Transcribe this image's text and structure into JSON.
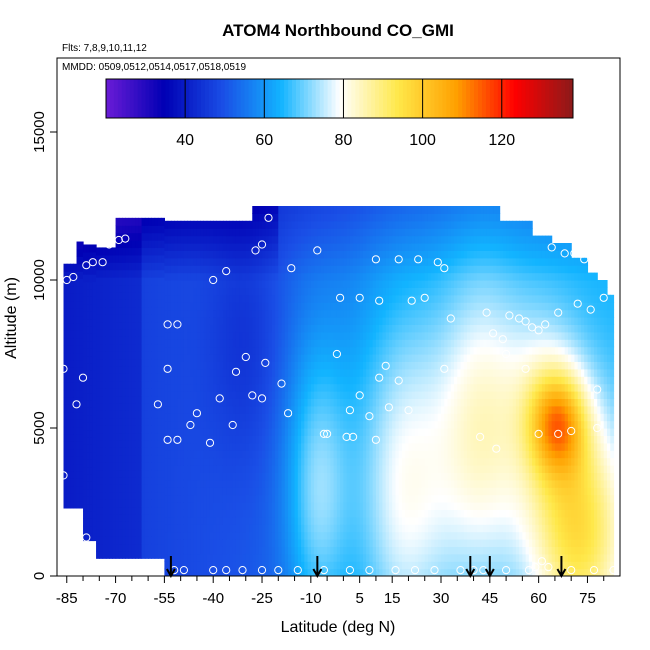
{
  "chart_data": {
    "type": "heatmap",
    "title": "ATOM4 Northbound CO_GMI",
    "notes": [
      "Flts: 7,8,9,10,11,12",
      "MMDD: 0509,0512,0514,0517,0518,0519"
    ],
    "xlabel": "Latitude (deg N)",
    "ylabel": "Altitude (m)",
    "xlim": [
      -88,
      85
    ],
    "ylim": [
      0,
      17500
    ],
    "x_ticks": [
      -85,
      -70,
      -55,
      -40,
      -25,
      -10,
      5,
      15,
      30,
      45,
      60,
      75
    ],
    "x_minor_ticks": [
      -80,
      -75,
      -65,
      -60,
      -50,
      -45,
      -35,
      -30,
      -20,
      -15,
      -5,
      0,
      10,
      20,
      25,
      35,
      40,
      50,
      55,
      65,
      70,
      80
    ],
    "y_ticks": [
      0,
      5000,
      10000,
      15000
    ],
    "colorbar": {
      "range": [
        20,
        138
      ],
      "ticks": [
        40,
        60,
        80,
        100,
        120
      ],
      "colors": [
        "#6b1cd6",
        "#0000b4",
        "#1a4ee6",
        "#12b4ff",
        "#ffffff",
        "#ffe84a",
        "#ffa000",
        "#ff0000",
        "#8b1a1a"
      ]
    },
    "field": {
      "lat_range": [
        -86,
        83
      ],
      "alt_range": [
        0,
        12500
      ],
      "value_range": [
        20,
        138
      ]
    },
    "descent_markers_lat": [
      -53,
      -8,
      39,
      45,
      67
    ],
    "observations": [
      {
        "lat": -85,
        "alt": 10000
      },
      {
        "lat": -83,
        "alt": 10100
      },
      {
        "lat": -79,
        "alt": 10500
      },
      {
        "lat": -77,
        "alt": 10600
      },
      {
        "lat": -74,
        "alt": 10600
      },
      {
        "lat": -72,
        "alt": 11200
      },
      {
        "lat": -69,
        "alt": 11350
      },
      {
        "lat": -67,
        "alt": 11400
      },
      {
        "lat": -40,
        "alt": 10000
      },
      {
        "lat": -36,
        "alt": 10300
      },
      {
        "lat": -27,
        "alt": 11000
      },
      {
        "lat": -25,
        "alt": 11200
      },
      {
        "lat": -23,
        "alt": 12100
      },
      {
        "lat": -8,
        "alt": 11000
      },
      {
        "lat": 10,
        "alt": 10700
      },
      {
        "lat": 17,
        "alt": 10700
      },
      {
        "lat": 23,
        "alt": 10700
      },
      {
        "lat": 29,
        "alt": 10600
      },
      {
        "lat": 31,
        "alt": 10400
      },
      {
        "lat": 64,
        "alt": 11100
      },
      {
        "lat": 68,
        "alt": 10900
      },
      {
        "lat": 71,
        "alt": 10900
      },
      {
        "lat": 73,
        "alt": 11100
      },
      {
        "lat": 74,
        "alt": 10700
      },
      {
        "lat": -16,
        "alt": 10400
      },
      {
        "lat": -1,
        "alt": 9400
      },
      {
        "lat": 5,
        "alt": 9400
      },
      {
        "lat": 11,
        "alt": 9300
      },
      {
        "lat": 21,
        "alt": 9300
      },
      {
        "lat": 25,
        "alt": 9400
      },
      {
        "lat": 33,
        "alt": 8700
      },
      {
        "lat": 44,
        "alt": 8900
      },
      {
        "lat": 51,
        "alt": 8800
      },
      {
        "lat": 54,
        "alt": 8700
      },
      {
        "lat": 56,
        "alt": 8600
      },
      {
        "lat": 58,
        "alt": 8400
      },
      {
        "lat": 60,
        "alt": 8300
      },
      {
        "lat": 62,
        "alt": 8500
      },
      {
        "lat": 66,
        "alt": 8900
      },
      {
        "lat": 72,
        "alt": 9200
      },
      {
        "lat": 76,
        "alt": 9000
      },
      {
        "lat": 80,
        "alt": 9400
      },
      {
        "lat": 46,
        "alt": 8200
      },
      {
        "lat": 49,
        "alt": 8000
      },
      {
        "lat": -54,
        "alt": 8500
      },
      {
        "lat": -51,
        "alt": 8500
      },
      {
        "lat": -86,
        "alt": 7000
      },
      {
        "lat": -80,
        "alt": 6700
      },
      {
        "lat": -54,
        "alt": 7000
      },
      {
        "lat": -30,
        "alt": 7400
      },
      {
        "lat": -24,
        "alt": 7200
      },
      {
        "lat": -19,
        "alt": 6500
      },
      {
        "lat": -33,
        "alt": 6900
      },
      {
        "lat": -2,
        "alt": 7500
      },
      {
        "lat": 13,
        "alt": 7100
      },
      {
        "lat": 11,
        "alt": 6700
      },
      {
        "lat": 17,
        "alt": 6600
      },
      {
        "lat": 31,
        "alt": 7000
      },
      {
        "lat": 50,
        "alt": 7500
      },
      {
        "lat": 56,
        "alt": 7000
      },
      {
        "lat": 78,
        "alt": 6300
      },
      {
        "lat": -82,
        "alt": 5800
      },
      {
        "lat": -57,
        "alt": 5800
      },
      {
        "lat": -45,
        "alt": 5500
      },
      {
        "lat": -38,
        "alt": 6000
      },
      {
        "lat": -28,
        "alt": 6100
      },
      {
        "lat": -25,
        "alt": 6000
      },
      {
        "lat": -17,
        "alt": 5500
      },
      {
        "lat": 2,
        "alt": 5600
      },
      {
        "lat": 5,
        "alt": 6100
      },
      {
        "lat": 8,
        "alt": 5400
      },
      {
        "lat": 14,
        "alt": 5700
      },
      {
        "lat": 20,
        "alt": 5600
      },
      {
        "lat": -34,
        "alt": 5100
      },
      {
        "lat": -41,
        "alt": 4500
      },
      {
        "lat": -47,
        "alt": 5100
      },
      {
        "lat": -51,
        "alt": 4600
      },
      {
        "lat": -54,
        "alt": 4600
      },
      {
        "lat": -6,
        "alt": 4800
      },
      {
        "lat": -5,
        "alt": 4800
      },
      {
        "lat": 1,
        "alt": 4700
      },
      {
        "lat": 3,
        "alt": 4700
      },
      {
        "lat": 10,
        "alt": 4600
      },
      {
        "lat": 42,
        "alt": 4700
      },
      {
        "lat": 47,
        "alt": 4300
      },
      {
        "lat": 60,
        "alt": 4800
      },
      {
        "lat": 66,
        "alt": 4800
      },
      {
        "lat": 70,
        "alt": 4900
      },
      {
        "lat": 78,
        "alt": 5000
      },
      {
        "lat": -86,
        "alt": 3400
      },
      {
        "lat": -79,
        "alt": 1300
      },
      {
        "lat": -52,
        "alt": 200
      },
      {
        "lat": -49,
        "alt": 200
      },
      {
        "lat": -40,
        "alt": 200
      },
      {
        "lat": -36,
        "alt": 200
      },
      {
        "lat": -31,
        "alt": 200
      },
      {
        "lat": -25,
        "alt": 200
      },
      {
        "lat": -20,
        "alt": 200
      },
      {
        "lat": -14,
        "alt": 200
      },
      {
        "lat": -6,
        "alt": 200
      },
      {
        "lat": 2,
        "alt": 200
      },
      {
        "lat": 8,
        "alt": 200
      },
      {
        "lat": 16,
        "alt": 200
      },
      {
        "lat": 22,
        "alt": 200
      },
      {
        "lat": 28,
        "alt": 200
      },
      {
        "lat": 36,
        "alt": 200
      },
      {
        "lat": 40,
        "alt": 200
      },
      {
        "lat": 43,
        "alt": 200
      },
      {
        "lat": 50,
        "alt": 200
      },
      {
        "lat": 57,
        "alt": 200
      },
      {
        "lat": 59,
        "alt": 300
      },
      {
        "lat": 61,
        "alt": 500
      },
      {
        "lat": 63,
        "alt": 300
      },
      {
        "lat": 70,
        "alt": 200
      },
      {
        "lat": 77,
        "alt": 200
      },
      {
        "lat": 83,
        "alt": 200
      }
    ]
  }
}
